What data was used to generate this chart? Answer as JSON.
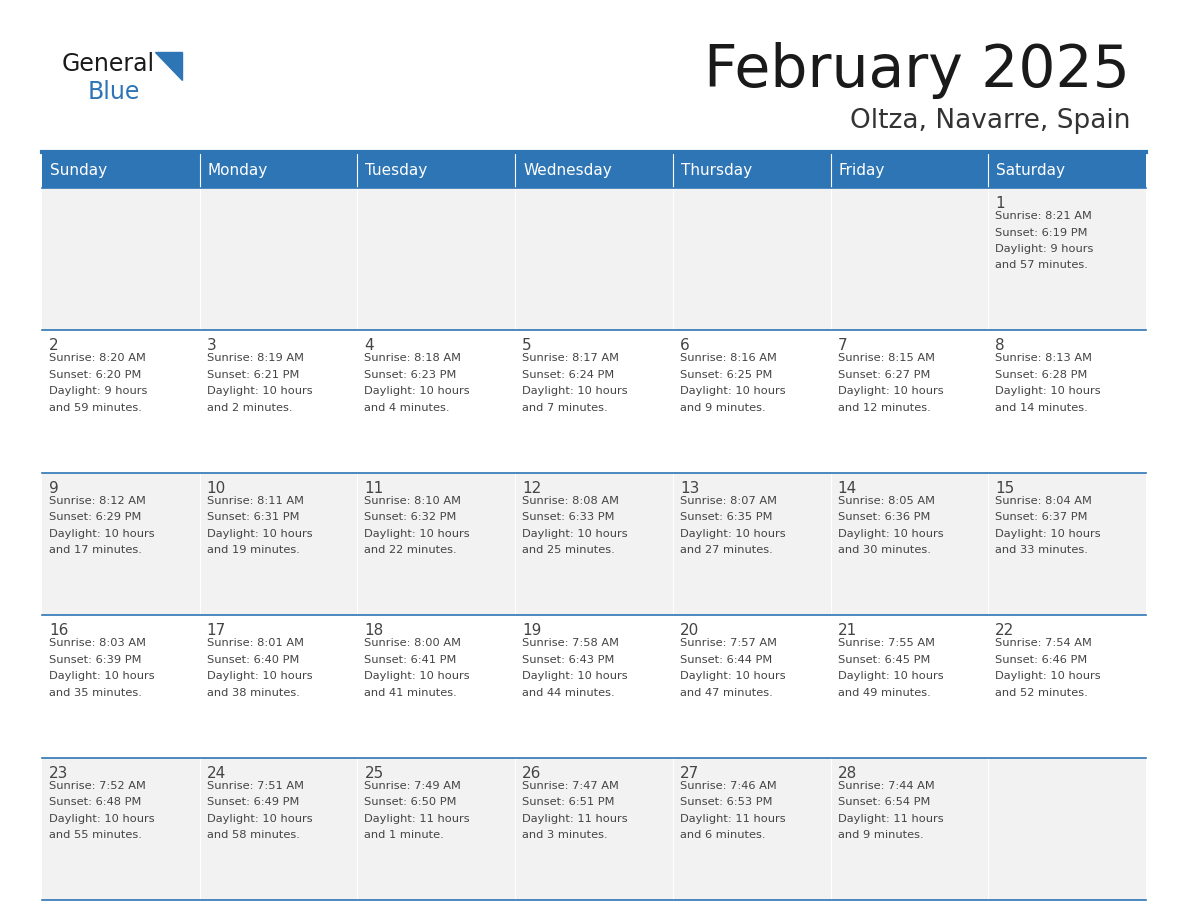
{
  "title": "February 2025",
  "subtitle": "Oltza, Navarre, Spain",
  "header_bg": "#2E75B6",
  "header_text_color": "#FFFFFF",
  "cell_bg_gray": "#F2F2F2",
  "cell_bg_white": "#FFFFFF",
  "day_headers": [
    "Sunday",
    "Monday",
    "Tuesday",
    "Wednesday",
    "Thursday",
    "Friday",
    "Saturday"
  ],
  "title_color": "#1a1a1a",
  "subtitle_color": "#333333",
  "text_color": "#444444",
  "line_color": "#2E75B6",
  "days": [
    {
      "day": 1,
      "col": 6,
      "row": 0,
      "sunrise": "8:21 AM",
      "sunset": "6:19 PM",
      "daylight_h": "9 hours",
      "daylight_m": "and 57 minutes."
    },
    {
      "day": 2,
      "col": 0,
      "row": 1,
      "sunrise": "8:20 AM",
      "sunset": "6:20 PM",
      "daylight_h": "9 hours",
      "daylight_m": "and 59 minutes."
    },
    {
      "day": 3,
      "col": 1,
      "row": 1,
      "sunrise": "8:19 AM",
      "sunset": "6:21 PM",
      "daylight_h": "10 hours",
      "daylight_m": "and 2 minutes."
    },
    {
      "day": 4,
      "col": 2,
      "row": 1,
      "sunrise": "8:18 AM",
      "sunset": "6:23 PM",
      "daylight_h": "10 hours",
      "daylight_m": "and 4 minutes."
    },
    {
      "day": 5,
      "col": 3,
      "row": 1,
      "sunrise": "8:17 AM",
      "sunset": "6:24 PM",
      "daylight_h": "10 hours",
      "daylight_m": "and 7 minutes."
    },
    {
      "day": 6,
      "col": 4,
      "row": 1,
      "sunrise": "8:16 AM",
      "sunset": "6:25 PM",
      "daylight_h": "10 hours",
      "daylight_m": "and 9 minutes."
    },
    {
      "day": 7,
      "col": 5,
      "row": 1,
      "sunrise": "8:15 AM",
      "sunset": "6:27 PM",
      "daylight_h": "10 hours",
      "daylight_m": "and 12 minutes."
    },
    {
      "day": 8,
      "col": 6,
      "row": 1,
      "sunrise": "8:13 AM",
      "sunset": "6:28 PM",
      "daylight_h": "10 hours",
      "daylight_m": "and 14 minutes."
    },
    {
      "day": 9,
      "col": 0,
      "row": 2,
      "sunrise": "8:12 AM",
      "sunset": "6:29 PM",
      "daylight_h": "10 hours",
      "daylight_m": "and 17 minutes."
    },
    {
      "day": 10,
      "col": 1,
      "row": 2,
      "sunrise": "8:11 AM",
      "sunset": "6:31 PM",
      "daylight_h": "10 hours",
      "daylight_m": "and 19 minutes."
    },
    {
      "day": 11,
      "col": 2,
      "row": 2,
      "sunrise": "8:10 AM",
      "sunset": "6:32 PM",
      "daylight_h": "10 hours",
      "daylight_m": "and 22 minutes."
    },
    {
      "day": 12,
      "col": 3,
      "row": 2,
      "sunrise": "8:08 AM",
      "sunset": "6:33 PM",
      "daylight_h": "10 hours",
      "daylight_m": "and 25 minutes."
    },
    {
      "day": 13,
      "col": 4,
      "row": 2,
      "sunrise": "8:07 AM",
      "sunset": "6:35 PM",
      "daylight_h": "10 hours",
      "daylight_m": "and 27 minutes."
    },
    {
      "day": 14,
      "col": 5,
      "row": 2,
      "sunrise": "8:05 AM",
      "sunset": "6:36 PM",
      "daylight_h": "10 hours",
      "daylight_m": "and 30 minutes."
    },
    {
      "day": 15,
      "col": 6,
      "row": 2,
      "sunrise": "8:04 AM",
      "sunset": "6:37 PM",
      "daylight_h": "10 hours",
      "daylight_m": "and 33 minutes."
    },
    {
      "day": 16,
      "col": 0,
      "row": 3,
      "sunrise": "8:03 AM",
      "sunset": "6:39 PM",
      "daylight_h": "10 hours",
      "daylight_m": "and 35 minutes."
    },
    {
      "day": 17,
      "col": 1,
      "row": 3,
      "sunrise": "8:01 AM",
      "sunset": "6:40 PM",
      "daylight_h": "10 hours",
      "daylight_m": "and 38 minutes."
    },
    {
      "day": 18,
      "col": 2,
      "row": 3,
      "sunrise": "8:00 AM",
      "sunset": "6:41 PM",
      "daylight_h": "10 hours",
      "daylight_m": "and 41 minutes."
    },
    {
      "day": 19,
      "col": 3,
      "row": 3,
      "sunrise": "7:58 AM",
      "sunset": "6:43 PM",
      "daylight_h": "10 hours",
      "daylight_m": "and 44 minutes."
    },
    {
      "day": 20,
      "col": 4,
      "row": 3,
      "sunrise": "7:57 AM",
      "sunset": "6:44 PM",
      "daylight_h": "10 hours",
      "daylight_m": "and 47 minutes."
    },
    {
      "day": 21,
      "col": 5,
      "row": 3,
      "sunrise": "7:55 AM",
      "sunset": "6:45 PM",
      "daylight_h": "10 hours",
      "daylight_m": "and 49 minutes."
    },
    {
      "day": 22,
      "col": 6,
      "row": 3,
      "sunrise": "7:54 AM",
      "sunset": "6:46 PM",
      "daylight_h": "10 hours",
      "daylight_m": "and 52 minutes."
    },
    {
      "day": 23,
      "col": 0,
      "row": 4,
      "sunrise": "7:52 AM",
      "sunset": "6:48 PM",
      "daylight_h": "10 hours",
      "daylight_m": "and 55 minutes."
    },
    {
      "day": 24,
      "col": 1,
      "row": 4,
      "sunrise": "7:51 AM",
      "sunset": "6:49 PM",
      "daylight_h": "10 hours",
      "daylight_m": "and 58 minutes."
    },
    {
      "day": 25,
      "col": 2,
      "row": 4,
      "sunrise": "7:49 AM",
      "sunset": "6:50 PM",
      "daylight_h": "11 hours",
      "daylight_m": "and 1 minute."
    },
    {
      "day": 26,
      "col": 3,
      "row": 4,
      "sunrise": "7:47 AM",
      "sunset": "6:51 PM",
      "daylight_h": "11 hours",
      "daylight_m": "and 3 minutes."
    },
    {
      "day": 27,
      "col": 4,
      "row": 4,
      "sunrise": "7:46 AM",
      "sunset": "6:53 PM",
      "daylight_h": "11 hours",
      "daylight_m": "and 6 minutes."
    },
    {
      "day": 28,
      "col": 5,
      "row": 4,
      "sunrise": "7:44 AM",
      "sunset": "6:54 PM",
      "daylight_h": "11 hours",
      "daylight_m": "and 9 minutes."
    }
  ]
}
